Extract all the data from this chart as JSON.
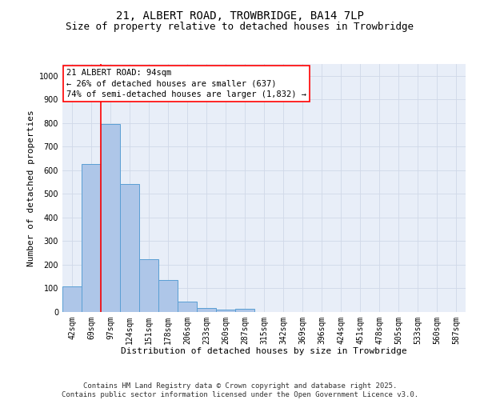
{
  "title_line1": "21, ALBERT ROAD, TROWBRIDGE, BA14 7LP",
  "title_line2": "Size of property relative to detached houses in Trowbridge",
  "xlabel": "Distribution of detached houses by size in Trowbridge",
  "ylabel": "Number of detached properties",
  "categories": [
    "42sqm",
    "69sqm",
    "97sqm",
    "124sqm",
    "151sqm",
    "178sqm",
    "206sqm",
    "233sqm",
    "260sqm",
    "287sqm",
    "315sqm",
    "342sqm",
    "369sqm",
    "396sqm",
    "424sqm",
    "451sqm",
    "478sqm",
    "505sqm",
    "533sqm",
    "560sqm",
    "587sqm"
  ],
  "values": [
    107,
    628,
    796,
    543,
    222,
    137,
    43,
    16,
    10,
    12,
    0,
    0,
    0,
    0,
    0,
    0,
    0,
    0,
    0,
    0,
    0
  ],
  "bar_color": "#aec6e8",
  "bar_edge_color": "#5a9fd4",
  "vline_x_index": 2,
  "vline_color": "red",
  "annotation_text": "21 ALBERT ROAD: 94sqm\n← 26% of detached houses are smaller (637)\n74% of semi-detached houses are larger (1,832) →",
  "annotation_box_color": "white",
  "annotation_box_edge_color": "red",
  "ylim": [
    0,
    1050
  ],
  "yticks": [
    0,
    100,
    200,
    300,
    400,
    500,
    600,
    700,
    800,
    900,
    1000
  ],
  "grid_color": "#d0d8e8",
  "bg_color": "#e8eef8",
  "footer_text": "Contains HM Land Registry data © Crown copyright and database right 2025.\nContains public sector information licensed under the Open Government Licence v3.0.",
  "title_fontsize": 10,
  "subtitle_fontsize": 9,
  "axis_label_fontsize": 8,
  "tick_fontsize": 7,
  "annotation_fontsize": 7.5,
  "footer_fontsize": 6.5
}
